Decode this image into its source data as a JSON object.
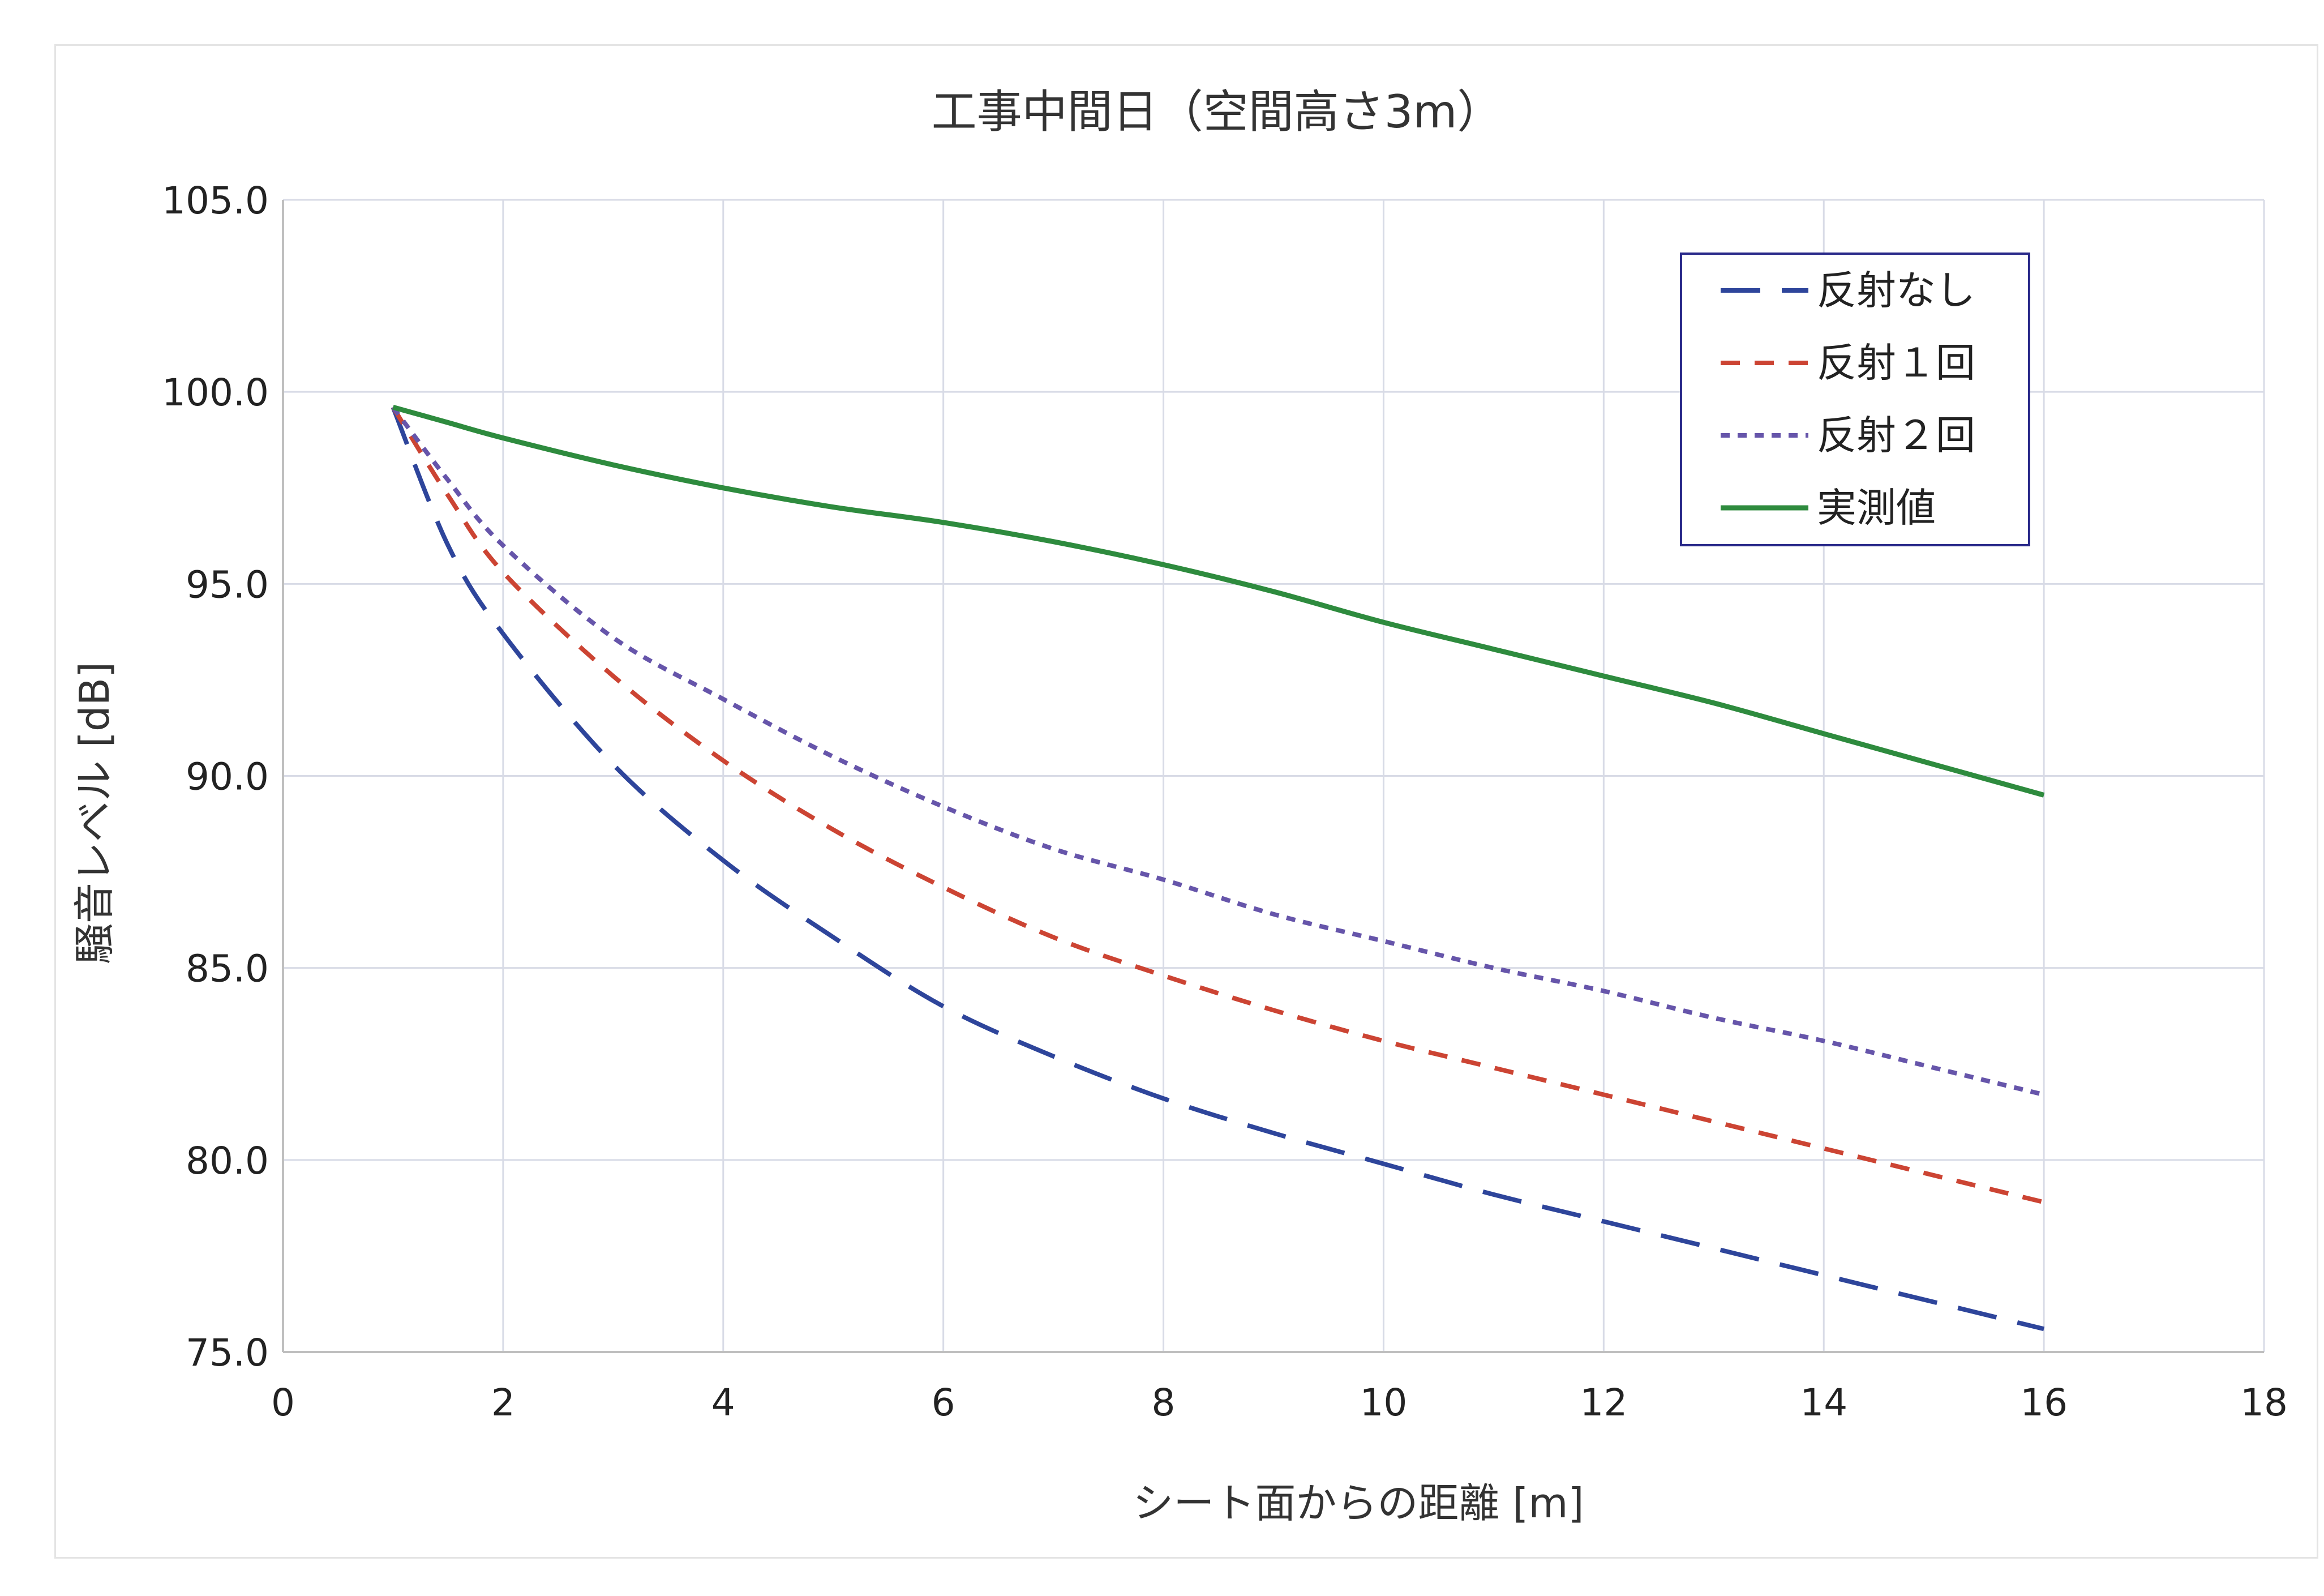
{
  "chart_data": {
    "type": "line",
    "title": "工事中間日（空間高さ3m）",
    "xlabel": "シート面からの距離 [m]",
    "ylabel": "騒音レベル [dB]",
    "xlim": [
      0,
      18
    ],
    "ylim": [
      75,
      105
    ],
    "x_ticks": [
      "0",
      "2",
      "4",
      "6",
      "8",
      "10",
      "12",
      "14",
      "16",
      "18"
    ],
    "y_ticks": [
      "75.0",
      "80.0",
      "85.0",
      "90.0",
      "95.0",
      "100.0",
      "105.0"
    ],
    "grid": true,
    "legend_position": "top-right",
    "x": [
      1,
      1.5,
      2,
      3,
      4,
      5,
      6,
      7,
      8,
      9,
      10,
      11,
      12,
      13,
      14,
      15,
      16
    ],
    "series": [
      {
        "name": "反射なし",
        "style": "long-dash",
        "color": "#2e459b",
        "values": [
          99.6,
          96.0,
          93.7,
          90.3,
          87.8,
          85.8,
          84.0,
          82.7,
          81.6,
          80.7,
          79.9,
          79.1,
          78.4,
          77.7,
          77.0,
          76.3,
          75.6
        ]
      },
      {
        "name": "反射１回",
        "style": "short-dash",
        "color": "#cc4433",
        "values": [
          99.6,
          97.3,
          95.3,
          92.6,
          90.4,
          88.6,
          87.1,
          85.8,
          84.8,
          83.9,
          83.1,
          82.4,
          81.7,
          81.0,
          80.3,
          79.6,
          78.9
        ]
      },
      {
        "name": "反射２回",
        "style": "dotted",
        "color": "#6655aa",
        "values": [
          99.6,
          97.7,
          96.0,
          93.6,
          92.0,
          90.5,
          89.2,
          88.1,
          87.3,
          86.4,
          85.7,
          85.0,
          84.4,
          83.7,
          83.1,
          82.4,
          81.7
        ]
      },
      {
        "name": "実測値",
        "style": "solid",
        "color": "#2e8b3e",
        "values": [
          99.6,
          99.2,
          98.8,
          98.1,
          97.5,
          97.0,
          96.6,
          96.1,
          95.5,
          94.8,
          94.0,
          93.3,
          92.6,
          91.9,
          91.1,
          90.3,
          89.5
        ]
      }
    ]
  }
}
